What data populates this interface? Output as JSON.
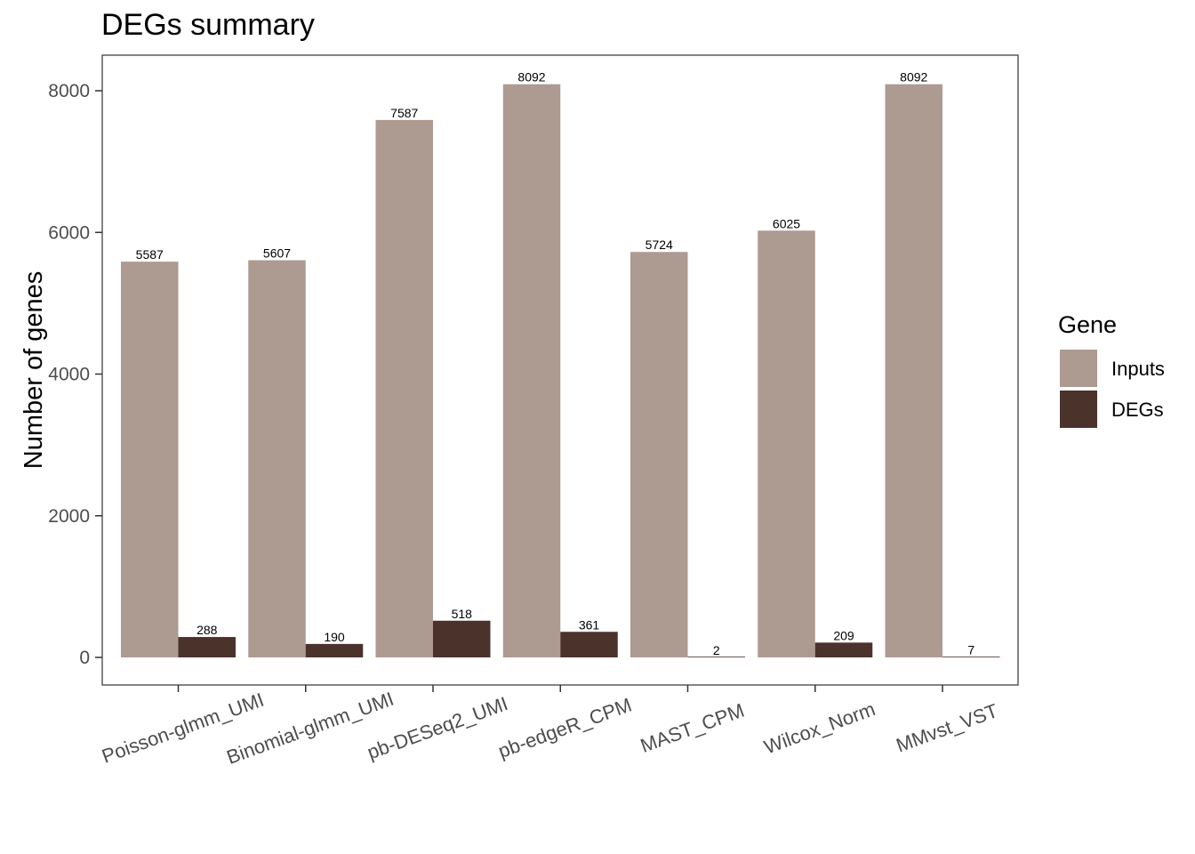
{
  "chart_data": {
    "type": "bar",
    "title": "DEGs summary",
    "xlabel": "",
    "ylabel": "Number of genes",
    "categories": [
      "Poisson-glmm_UMI",
      "Binomial-glmm_UMI",
      "pb-DESeq2_UMI",
      "pb-edgeR_CPM",
      "MAST_CPM",
      "Wilcox_Norm",
      "MMvst_VST"
    ],
    "series": [
      {
        "name": "Inputs",
        "color": "#ad9a91",
        "values": [
          5587,
          5607,
          7587,
          8092,
          5724,
          6025,
          8092
        ]
      },
      {
        "name": "DEGs",
        "color": "#4b322b",
        "values": [
          288,
          190,
          518,
          361,
          2,
          209,
          7
        ]
      }
    ],
    "yticks": [
      0,
      2000,
      4000,
      6000,
      8000
    ],
    "ylim": [
      -400,
      8500
    ],
    "grid": false,
    "legend": {
      "title": "Gene",
      "position": "right"
    }
  }
}
